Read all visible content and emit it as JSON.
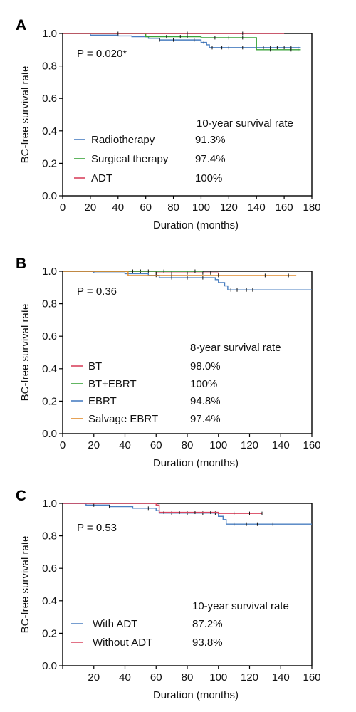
{
  "chart_data": [
    {
      "type": "line",
      "panel": "A",
      "pvalue": "P = 0.020*",
      "xlabel": "Duration (months)",
      "ylabel": "BC-free survival rate",
      "xlim": [
        0,
        180
      ],
      "ylim": [
        0,
        1.0
      ],
      "xticks": [
        "0",
        "20",
        "40",
        "60",
        "80",
        "100",
        "120",
        "140",
        "160",
        "180"
      ],
      "yticks": [
        "0.0",
        "0.2",
        "0.4",
        "0.6",
        "0.8",
        "1.0"
      ],
      "legend_header": "10-year survival rate",
      "series": [
        {
          "name": "Radiotherapy",
          "rate": "91.3%",
          "color": "#4a7fc1",
          "x": [
            0,
            20,
            40,
            50,
            62,
            70,
            100,
            104,
            106,
            172
          ],
          "y": [
            1.0,
            0.99,
            0.985,
            0.98,
            0.97,
            0.96,
            0.945,
            0.93,
            0.913,
            0.913
          ],
          "censor_x": [
            70,
            80,
            95,
            102,
            108,
            115,
            120,
            130,
            145,
            150,
            155,
            160,
            165,
            170
          ]
        },
        {
          "name": "Surgical therapy",
          "rate": "97.4%",
          "color": "#3aa33a",
          "x": [
            0,
            60,
            100,
            140,
            172
          ],
          "y": [
            1.0,
            0.98,
            0.974,
            0.9,
            0.9
          ],
          "censor_x": [
            75,
            85,
            90,
            110,
            120,
            130,
            150,
            165,
            170
          ]
        },
        {
          "name": "ADT",
          "rate": "100%",
          "color": "#d9445f",
          "x": [
            0,
            160
          ],
          "y": [
            1.0,
            1.0
          ],
          "censor_x": [
            40,
            90,
            130
          ]
        }
      ]
    },
    {
      "type": "line",
      "panel": "B",
      "pvalue": "P = 0.36",
      "xlabel": "Duration (months)",
      "ylabel": "BC-free survival rate",
      "xlim": [
        0,
        160
      ],
      "ylim": [
        0,
        1.0
      ],
      "xticks": [
        "0",
        "20",
        "40",
        "60",
        "80",
        "100",
        "120",
        "140",
        "160"
      ],
      "yticks": [
        "0.0",
        "0.2",
        "0.4",
        "0.6",
        "0.8",
        "1.0"
      ],
      "legend_header": "8-year survival rate",
      "series": [
        {
          "name": "BT",
          "rate": "98.0%",
          "color": "#d9445f",
          "x": [
            0,
            60,
            100
          ],
          "y": [
            1.0,
            0.99,
            0.98
          ],
          "censor_x": [
            50,
            60,
            70,
            80,
            90,
            95
          ]
        },
        {
          "name": "BT+EBRT",
          "rate": "100%",
          "color": "#3aa33a",
          "x": [
            0,
            90
          ],
          "y": [
            1.0,
            1.0
          ],
          "censor_x": [
            45,
            55,
            65,
            85
          ]
        },
        {
          "name": "EBRT",
          "rate": "94.8%",
          "color": "#4a7fc1",
          "x": [
            0,
            20,
            40,
            55,
            62,
            98,
            100,
            104,
            106,
            160
          ],
          "y": [
            1.0,
            0.99,
            0.985,
            0.975,
            0.96,
            0.948,
            0.93,
            0.91,
            0.885,
            0.885
          ],
          "censor_x": [
            60,
            70,
            80,
            90,
            108,
            112,
            118,
            122
          ]
        },
        {
          "name": "Salvage EBRT",
          "rate": "97.4%",
          "color": "#e08a2a",
          "x": [
            0,
            42,
            150
          ],
          "y": [
            1.0,
            0.974,
            0.974
          ],
          "censor_x": [
            70,
            100,
            130,
            145
          ]
        }
      ]
    },
    {
      "type": "line",
      "panel": "C",
      "pvalue": "P = 0.53",
      "xlabel": "Duration (months)",
      "ylabel": "BC-free survival rate",
      "xlim": [
        0,
        160
      ],
      "ylim": [
        0,
        1.0
      ],
      "xticks": [
        "20",
        "40",
        "60",
        "80",
        "100",
        "120",
        "140",
        "160"
      ],
      "yticks": [
        "0.0",
        "0.2",
        "0.4",
        "0.6",
        "0.8",
        "1.0"
      ],
      "legend_header": "10-year survival rate",
      "series": [
        {
          "name": "With ADT",
          "rate": "87.2%",
          "color": "#4a7fc1",
          "x": [
            0,
            15,
            30,
            45,
            60,
            62,
            100,
            103,
            105,
            160
          ],
          "y": [
            1.0,
            0.99,
            0.98,
            0.97,
            0.955,
            0.94,
            0.92,
            0.9,
            0.872,
            0.872
          ],
          "censor_x": [
            20,
            30,
            40,
            55,
            70,
            80,
            90,
            98,
            110,
            118,
            125,
            135
          ]
        },
        {
          "name": "Without ADT",
          "rate": "93.8%",
          "color": "#d9445f",
          "x": [
            0,
            60,
            62,
            100,
            128
          ],
          "y": [
            1.0,
            0.99,
            0.945,
            0.938,
            0.938
          ],
          "censor_x": [
            65,
            75,
            85,
            95,
            110,
            120,
            128
          ]
        }
      ]
    }
  ]
}
